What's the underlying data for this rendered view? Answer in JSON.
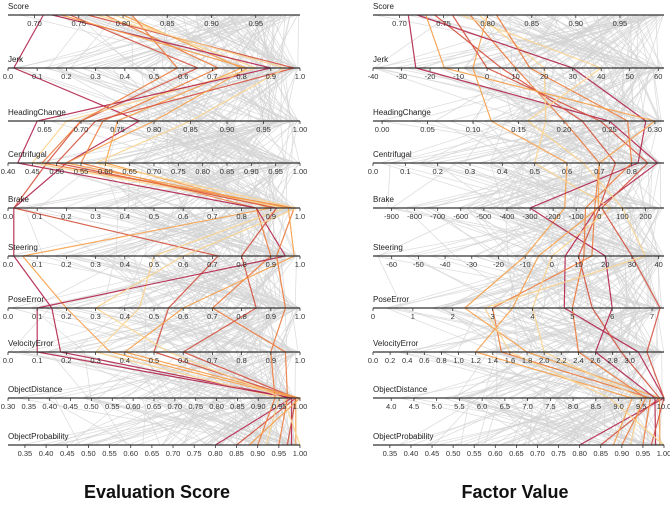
{
  "captions": {
    "left": "Evaluation Score",
    "right": "Factor Value"
  },
  "colors": {
    "background_lines": "#d3d3d3",
    "highlight_lines": [
      "#fbd38d",
      "#f6a04a",
      "#ec7a3c",
      "#d4503d",
      "#b2234b"
    ],
    "axis": "#333333"
  },
  "chart_data": [
    {
      "type": "parallel-coordinates",
      "title": "Evaluation Score",
      "axes": [
        {
          "name": "Score",
          "range": [
            0.67,
            1.0
          ],
          "ticks": [
            "0.70",
            "0.75",
            "0.80",
            "0.85",
            "0.90",
            "0.95"
          ]
        },
        {
          "name": "Jerk",
          "range": [
            0.0,
            1.0
          ],
          "ticks": [
            "0.0",
            "0.1",
            "0.2",
            "0.3",
            "0.4",
            "0.5",
            "0.6",
            "0.7",
            "0.8",
            "0.9",
            "1.0"
          ]
        },
        {
          "name": "HeadingChange",
          "range": [
            0.6,
            1.0
          ],
          "ticks": [
            "0.65",
            "0.70",
            "0.75",
            "0.80",
            "0.85",
            "0.90",
            "0.95",
            "1.00"
          ]
        },
        {
          "name": "Centrifugal",
          "range": [
            0.4,
            1.0
          ],
          "ticks": [
            "0.40",
            "0.45",
            "0.50",
            "0.55",
            "0.60",
            "0.65",
            "0.70",
            "0.75",
            "0.80",
            "0.85",
            "0.90",
            "0.95",
            "1.00"
          ]
        },
        {
          "name": "Brake",
          "range": [
            0.0,
            1.0
          ],
          "ticks": [
            "0.0",
            "0.1",
            "0.2",
            "0.3",
            "0.4",
            "0.5",
            "0.6",
            "0.7",
            "0.8",
            "0.9",
            "1.0"
          ]
        },
        {
          "name": "Steering",
          "range": [
            0.0,
            1.0
          ],
          "ticks": [
            "0.0",
            "0.1",
            "0.2",
            "0.3",
            "0.4",
            "0.5",
            "0.6",
            "0.7",
            "0.8",
            "0.9",
            "1.0"
          ]
        },
        {
          "name": "PoseError",
          "range": [
            0.0,
            1.0
          ],
          "ticks": [
            "0.0",
            "0.1",
            "0.2",
            "0.3",
            "0.4",
            "0.5",
            "0.6",
            "0.7",
            "0.8",
            "0.9",
            "1.0"
          ]
        },
        {
          "name": "VelocityError",
          "range": [
            0.0,
            1.0
          ],
          "ticks": [
            "0.0",
            "0.1",
            "0.2",
            "0.3",
            "0.4",
            "0.5",
            "0.6",
            "0.7",
            "0.8",
            "0.9",
            "1.0"
          ]
        },
        {
          "name": "ObjectDistance",
          "range": [
            0.3,
            1.0
          ],
          "ticks": [
            "0.30",
            "0.35",
            "0.40",
            "0.45",
            "0.50",
            "0.55",
            "0.60",
            "0.65",
            "0.70",
            "0.75",
            "0.80",
            "0.85",
            "0.90",
            "0.95",
            "1.00"
          ]
        },
        {
          "name": "ObjectProbability",
          "range": [
            0.31,
            1.0
          ],
          "ticks": [
            "0.35",
            "0.40",
            "0.45",
            "0.50",
            "0.55",
            "0.60",
            "0.65",
            "0.70",
            "0.75",
            "0.80",
            "0.85",
            "0.90",
            "0.95",
            "1.00"
          ]
        }
      ],
      "highlighted_lines": [
        {
          "color": "#b2234b",
          "values": [
            0.71,
            0.02,
            0.78,
            0.52,
            0.02,
            0.02,
            0.15,
            0.18,
            0.98,
            0.8
          ]
        },
        {
          "color": "#d4503d",
          "values": [
            0.74,
            0.65,
            0.7,
            0.48,
            0.02,
            0.72,
            0.55,
            0.5,
            0.99,
            0.85
          ]
        },
        {
          "color": "#ec7a3c",
          "values": [
            0.78,
            0.72,
            0.73,
            0.55,
            0.85,
            0.9,
            0.7,
            0.95,
            0.97,
            0.95
          ]
        },
        {
          "color": "#f6a04a",
          "values": [
            0.8,
            0.8,
            0.75,
            0.6,
            0.9,
            0.05,
            0.2,
            0.35,
            0.99,
            0.99
          ]
        },
        {
          "color": "#fbd38d",
          "values": [
            0.79,
            0.85,
            0.68,
            0.45,
            0.95,
            0.5,
            0.45,
            0.3,
            0.95,
            0.92
          ]
        },
        {
          "color": "#b2234b",
          "values": [
            0.72,
            0.9,
            0.64,
            0.42,
            0.85,
            0.95,
            0.1,
            0.1,
            0.98,
            0.98
          ]
        },
        {
          "color": "#d4503d",
          "values": [
            0.76,
            0.98,
            0.72,
            0.5,
            0.92,
            0.8,
            0.85,
            0.6,
            0.99,
            0.97
          ]
        },
        {
          "color": "#ec7a3c",
          "values": [
            0.81,
            0.58,
            0.7,
            0.47,
            0.98,
            0.92,
            0.95,
            0.9,
            0.94,
            0.9
          ]
        },
        {
          "color": "#f6a04a",
          "values": [
            0.73,
            0.82,
            0.8,
            0.52,
            0.96,
            0.98,
            0.6,
            0.4,
            1.0,
            0.88
          ]
        },
        {
          "color": "#fbd38d",
          "values": [
            0.77,
            0.95,
            0.85,
            0.58,
            0.99,
            0.6,
            0.3,
            0.55,
            0.96,
            1.0
          ]
        }
      ]
    },
    {
      "type": "parallel-coordinates",
      "title": "Factor Value",
      "axes": [
        {
          "name": "Score",
          "range": [
            0.67,
            1.0
          ],
          "ticks": [
            "0.70",
            "0.75",
            "0.80",
            "0.85",
            "0.90",
            "0.95"
          ]
        },
        {
          "name": "Jerk",
          "range": [
            -40,
            62
          ],
          "ticks": [
            "-40",
            "-30",
            "-20",
            "-10",
            "0",
            "10",
            "20",
            "30",
            "40",
            "50",
            "60"
          ]
        },
        {
          "name": "HeadingChange",
          "range": [
            -0.01,
            0.31
          ],
          "ticks": [
            "0.00",
            "0.05",
            "0.10",
            "0.15",
            "0.20",
            "0.25",
            "0.30"
          ]
        },
        {
          "name": "Centrifugal",
          "range": [
            0.0,
            0.9
          ],
          "ticks": [
            "0.0",
            "0.1",
            "0.2",
            "0.3",
            "0.4",
            "0.5",
            "0.6",
            "0.7",
            "0.8"
          ]
        },
        {
          "name": "Brake",
          "range": [
            -980,
            280
          ],
          "ticks": [
            "-900",
            "-800",
            "-700",
            "-600",
            "-500",
            "-400",
            "-300",
            "-200",
            "-100",
            "0",
            "100",
            "200"
          ]
        },
        {
          "name": "Steering",
          "range": [
            -67,
            42
          ],
          "ticks": [
            "-60",
            "-50",
            "-40",
            "-30",
            "-20",
            "-10",
            "0",
            "10",
            "20",
            "30",
            "40"
          ]
        },
        {
          "name": "PoseError",
          "range": [
            0,
            7.3
          ],
          "ticks": [
            "0",
            "1",
            "2",
            "3",
            "4",
            "5",
            "6",
            "7"
          ]
        },
        {
          "name": "VelocityError",
          "range": [
            0.0,
            3.4
          ],
          "ticks": [
            "0.0",
            "0.2",
            "0.4",
            "0.6",
            "0.8",
            "1.0",
            "1.2",
            "1.4",
            "1.6",
            "1.8",
            "2.0",
            "2.2",
            "2.4",
            "2.6",
            "2.8",
            "3.0"
          ]
        },
        {
          "name": "ObjectDistance",
          "range": [
            3.6,
            10.0
          ],
          "ticks": [
            "4.0",
            "4.5",
            "5.0",
            "5.5",
            "6.0",
            "6.5",
            "7.0",
            "7.5",
            "8.0",
            "8.5",
            "9.0",
            "9.5",
            "10.0"
          ]
        },
        {
          "name": "ObjectProbability",
          "range": [
            0.31,
            1.0
          ],
          "ticks": [
            "0.35",
            "0.40",
            "0.45",
            "0.50",
            "0.55",
            "0.60",
            "0.65",
            "0.70",
            "0.75",
            "0.80",
            "0.85",
            "0.90",
            "0.95",
            "1.00"
          ]
        }
      ],
      "highlighted_lines": [
        {
          "color": "#b2234b",
          "values": [
            0.71,
            -25,
            0.25,
            0.88,
            -10,
            5,
            4.8,
            3.1,
            10.0,
            0.8
          ]
        },
        {
          "color": "#d4503d",
          "values": [
            0.74,
            5,
            0.22,
            0.75,
            0,
            10,
            5.5,
            2.9,
            9.9,
            0.85
          ]
        },
        {
          "color": "#ec7a3c",
          "values": [
            0.78,
            10,
            0.2,
            0.7,
            -20,
            15,
            3.0,
            1.5,
            9.7,
            0.95
          ]
        },
        {
          "color": "#f6a04a",
          "values": [
            0.8,
            -5,
            0.12,
            0.6,
            -150,
            -10,
            2.3,
            1.8,
            9.9,
            0.99
          ]
        },
        {
          "color": "#fbd38d",
          "values": [
            0.79,
            20,
            0.18,
            0.5,
            50,
            0,
            4.0,
            2.0,
            9.5,
            0.92
          ]
        },
        {
          "color": "#b2234b",
          "values": [
            0.72,
            30,
            0.29,
            0.82,
            -300,
            20,
            6.0,
            2.6,
            9.8,
            0.98
          ]
        },
        {
          "color": "#d4503d",
          "values": [
            0.76,
            0,
            0.24,
            0.85,
            10,
            30,
            7.2,
            3.2,
            10.0,
            0.97
          ]
        },
        {
          "color": "#ec7a3c",
          "values": [
            0.81,
            15,
            0.27,
            0.8,
            -60,
            12,
            5.0,
            2.4,
            9.6,
            0.9
          ]
        },
        {
          "color": "#f6a04a",
          "values": [
            0.73,
            -15,
            0.3,
            0.7,
            -5,
            -5,
            3.5,
            1.2,
            9.3,
            0.88
          ]
        },
        {
          "color": "#fbd38d",
          "values": [
            0.77,
            40,
            0.16,
            0.65,
            100,
            35,
            2.8,
            1.6,
            8.8,
            1.0
          ]
        }
      ]
    }
  ]
}
